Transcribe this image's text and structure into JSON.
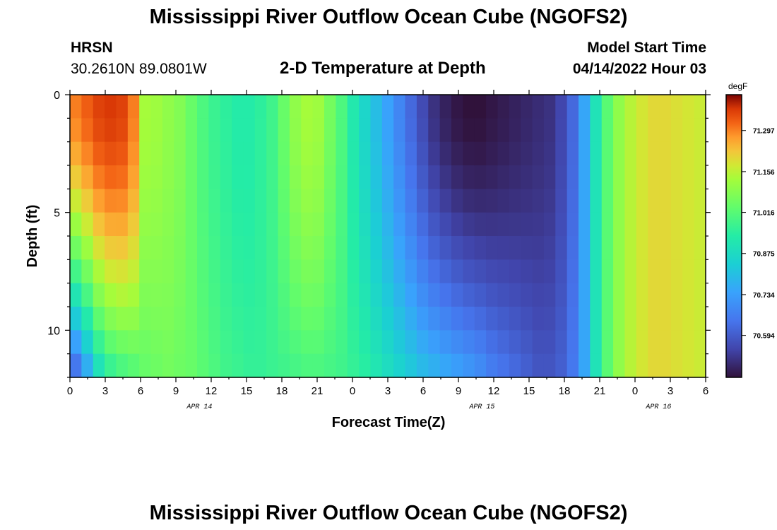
{
  "header": {
    "title": "Mississippi River Outflow Ocean Cube (NGOFS2)",
    "station": "HRSN",
    "coords": "30.2610N  89.0801W",
    "chart_title": "2-D Temperature at Depth",
    "model_start_label": "Model Start Time",
    "model_start_value": "04/14/2022 Hour 03"
  },
  "footer": {
    "title": "Mississippi River Outflow Ocean Cube (NGOFS2)"
  },
  "chart_data": {
    "type": "heatmap",
    "title": "2-D Temperature at Depth",
    "xlabel": "Forecast Time(Z)",
    "ylabel": "Depth (ft)",
    "x_range_hours": [
      0,
      54
    ],
    "ylim": [
      0,
      12
    ],
    "x_tick_labels": [
      "0",
      "3",
      "6",
      "9",
      "12",
      "15",
      "18",
      "21",
      "0",
      "3",
      "6",
      "9",
      "12",
      "15",
      "18",
      "21",
      "0",
      "3",
      "6"
    ],
    "y_tick_labels": [
      "0",
      "5",
      "10"
    ],
    "y_tick_values": [
      0,
      5,
      10
    ],
    "date_labels": [
      {
        "text": "APR 14",
        "hour": 11
      },
      {
        "text": "APR 15",
        "hour": 35
      },
      {
        "text": "APR 16",
        "hour": 50
      }
    ],
    "colorbar": {
      "unit": "degF",
      "min": 70.45,
      "max": 71.42,
      "ticks": [
        "71.297",
        "71.156",
        "71.016",
        "70.875",
        "70.734",
        "70.594"
      ]
    },
    "time_profile_surface_degF": [
      71.3,
      71.33,
      71.36,
      71.37,
      71.36,
      71.3,
      71.13,
      71.12,
      71.1,
      71.08,
      71.04,
      71.0,
      70.97,
      70.95,
      70.93,
      70.93,
      70.95,
      70.98,
      71.04,
      71.1,
      71.13,
      71.12,
      71.06,
      71.0,
      70.92,
      70.86,
      70.8,
      70.74,
      70.68,
      70.62,
      70.56,
      70.51,
      70.48,
      70.46,
      70.45,
      70.45,
      70.46,
      70.47,
      70.48,
      70.49,
      70.5,
      70.51,
      70.55,
      70.62,
      70.75,
      70.9,
      71.02,
      71.1,
      71.15,
      71.18,
      71.2,
      71.2,
      71.19,
      71.18,
      71.17
    ],
    "time_profile_bottom_degF": [
      70.65,
      70.77,
      70.9,
      70.97,
      71.0,
      71.02,
      71.04,
      71.05,
      71.06,
      71.05,
      71.04,
      71.02,
      71.0,
      70.98,
      70.97,
      70.96,
      70.96,
      70.97,
      70.98,
      70.99,
      71.0,
      71.0,
      70.99,
      70.98,
      70.96,
      70.94,
      70.91,
      70.88,
      70.85,
      70.82,
      70.79,
      70.77,
      70.75,
      70.73,
      70.71,
      70.69,
      70.66,
      70.64,
      70.62,
      70.6,
      70.58,
      70.58,
      70.6,
      70.65,
      70.75,
      70.9,
      71.02,
      71.1,
      71.15,
      71.18,
      71.2,
      71.2,
      71.19,
      71.18,
      71.17
    ]
  }
}
